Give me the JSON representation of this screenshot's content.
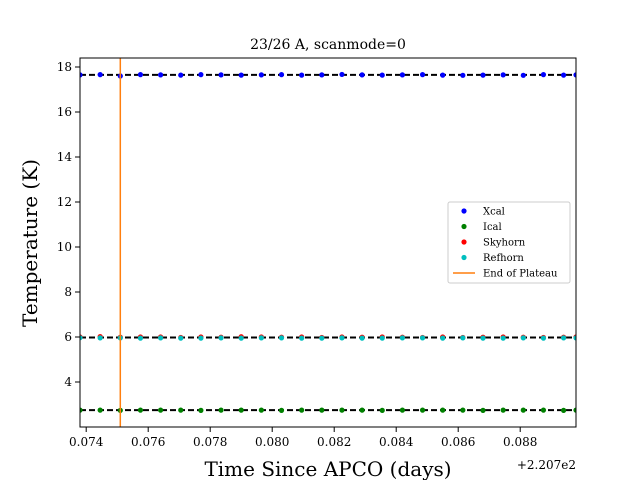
{
  "chart_data": {
    "type": "scatter",
    "title": "23/26 A, scanmode=0",
    "xlabel": "Time Since APCO (days)",
    "ylabel": "Temperature (K)",
    "x_offset_label": "+2.207e2",
    "xlim": [
      0.0738,
      0.0898
    ],
    "ylim": [
      2.0,
      18.4
    ],
    "xticks": [
      0.074,
      0.076,
      0.078,
      0.08,
      0.082,
      0.084,
      0.086,
      0.088
    ],
    "xtick_labels": [
      "0.074",
      "0.076",
      "0.078",
      "0.080",
      "0.082",
      "0.084",
      "0.086",
      "0.088"
    ],
    "yticks": [
      4,
      6,
      8,
      10,
      12,
      14,
      16,
      18
    ],
    "ytick_labels": [
      "4",
      "6",
      "8",
      "10",
      "12",
      "14",
      "16",
      "18"
    ],
    "x": [
      0.0738,
      0.07445,
      0.0751,
      0.07575,
      0.0764,
      0.07705,
      0.0777,
      0.07835,
      0.079,
      0.07965,
      0.0803,
      0.08095,
      0.0816,
      0.08225,
      0.0829,
      0.08355,
      0.0842,
      0.08485,
      0.0855,
      0.08615,
      0.0868,
      0.08745,
      0.0881,
      0.08875,
      0.0894,
      0.0898
    ],
    "reference_lines": [
      17.65,
      5.98,
      2.75
    ],
    "vline": 0.0751,
    "legend_position": "center-right",
    "series": [
      {
        "name": "Xcal",
        "color": "#0000ff",
        "values": [
          17.65,
          17.66,
          17.6,
          17.66,
          17.65,
          17.64,
          17.66,
          17.65,
          17.64,
          17.65,
          17.66,
          17.64,
          17.65,
          17.67,
          17.65,
          17.64,
          17.65,
          17.66,
          17.64,
          17.63,
          17.64,
          17.65,
          17.63,
          17.66,
          17.64,
          17.65
        ]
      },
      {
        "name": "Ical",
        "color": "#008000",
        "values": [
          2.75,
          2.75,
          2.74,
          2.75,
          2.75,
          2.75,
          2.74,
          2.75,
          2.75,
          2.75,
          2.74,
          2.75,
          2.75,
          2.75,
          2.75,
          2.74,
          2.75,
          2.75,
          2.75,
          2.75,
          2.74,
          2.75,
          2.75,
          2.75,
          2.74,
          2.75
        ]
      },
      {
        "name": "Skyhorn",
        "color": "#ff0000",
        "values": [
          6.0,
          6.02,
          5.99,
          6.0,
          6.0,
          5.98,
          6.0,
          5.99,
          6.01,
          6.0,
          5.99,
          6.0,
          5.98,
          6.0,
          5.99,
          6.0,
          5.99,
          5.98,
          6.0,
          5.98,
          5.99,
          6.0,
          5.99,
          5.98,
          5.99,
          6.0
        ]
      },
      {
        "name": "Refhorn",
        "color": "#00bfbf",
        "values": [
          5.97,
          5.96,
          5.96,
          5.95,
          5.96,
          5.95,
          5.95,
          5.96,
          5.95,
          5.96,
          5.96,
          5.95,
          5.95,
          5.96,
          5.95,
          5.95,
          5.96,
          5.96,
          5.95,
          5.96,
          5.95,
          5.95,
          5.96,
          5.95,
          5.96,
          5.96
        ]
      }
    ],
    "vline_series": {
      "name": "End of Plateau",
      "color": "#ff7f0e"
    }
  }
}
